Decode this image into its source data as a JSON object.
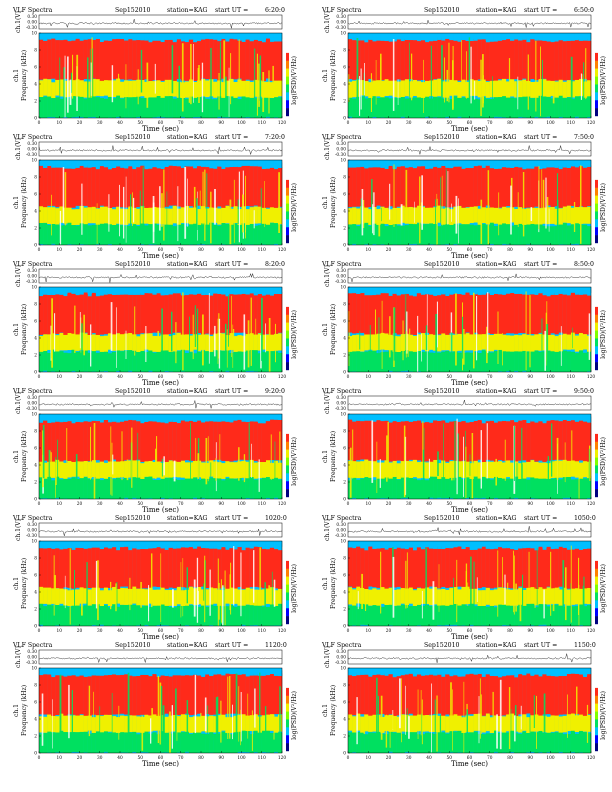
{
  "common": {
    "title": "VLF Spectra",
    "date": "Sep152010",
    "station": "station=KAG",
    "start_prefix": "start  UT =",
    "top_ylabel": "ch.1(V)",
    "spec_ylabel_ch": "ch.1",
    "spec_ylabel": "Frequency  (kHz)",
    "xlabel": "Time  (sec)",
    "colorbar_label": "log(PSD)(V²/Hz)",
    "x_ticks": [
      "0",
      "10",
      "20",
      "30",
      "40",
      "50",
      "60",
      "70",
      "80",
      "90",
      "100",
      "110",
      "120"
    ],
    "freq_ticks": [
      "0",
      "2",
      "4",
      "6",
      "8",
      "10"
    ],
    "volt_ticks": [
      "0.30",
      "0.00",
      "-0.30"
    ],
    "colors": {
      "background": "#00bfff",
      "low": "#00e060",
      "mid": "#f0f000",
      "high": "#ff2a1a",
      "trace": "#000000"
    }
  },
  "panels": [
    {
      "start": "6:20:0"
    },
    {
      "start": "6:50:0"
    },
    {
      "start": "7:20:0"
    },
    {
      "start": "7:50:0"
    },
    {
      "start": "8:20:0"
    },
    {
      "start": "8:50:0"
    },
    {
      "start": "9:20:0"
    },
    {
      "start": "9:50:0"
    },
    {
      "start": "1020:0"
    },
    {
      "start": "1050:0"
    },
    {
      "start": "1120:0"
    },
    {
      "start": "1150:0"
    }
  ],
  "chart_data": {
    "type": "heatmap",
    "description_units": {
      "x": "Time (sec)",
      "y": "Frequency (kHz)"
    },
    "xlim": [
      0,
      120
    ],
    "ylim": [
      0,
      10
    ],
    "top_trace_ylim": [
      -0.3,
      0.3
    ],
    "colorbar_colors": [
      "#000080",
      "#0000ff",
      "#00bfff",
      "#00e060",
      "#80ff00",
      "#f0f000",
      "#ff8000",
      "#ff2a1a",
      "#ffffff"
    ],
    "bands_kHz": [
      {
        "from": 0,
        "to": 2.5,
        "level": "low"
      },
      {
        "from": 2.5,
        "to": 4.5,
        "level": "mid"
      },
      {
        "from": 4.5,
        "to": 9.2,
        "level": "high"
      },
      {
        "from": 9.2,
        "to": 10,
        "level": "background"
      }
    ]
  }
}
